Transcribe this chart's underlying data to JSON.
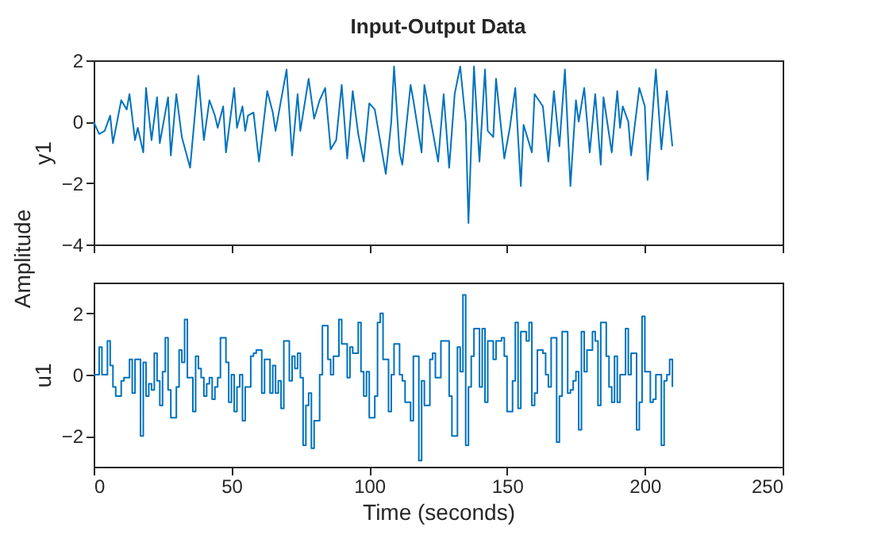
{
  "chart_data": [
    {
      "type": "line",
      "title": "Input-Output Data",
      "ylabel": "y1",
      "annotations": [
        "Amplitude"
      ],
      "tick_labels": "y",
      "x": [
        0,
        2,
        4,
        6,
        7,
        10,
        12,
        13,
        15,
        16,
        18,
        19,
        21,
        23,
        24,
        27,
        28,
        30,
        32,
        35,
        38,
        40,
        42,
        44,
        45,
        47,
        48,
        51,
        52,
        54,
        55,
        56,
        58,
        60,
        63,
        65,
        66,
        70,
        72,
        74,
        75,
        78,
        80,
        82,
        84,
        86,
        88,
        90,
        92,
        94,
        96,
        98,
        100,
        102,
        106,
        108,
        109,
        111,
        112,
        115,
        116,
        119,
        120,
        125,
        127,
        129,
        131,
        133,
        135,
        136,
        138,
        140,
        142,
        143,
        145,
        146,
        149,
        151,
        153,
        155,
        156,
        159,
        160,
        163,
        165,
        167,
        169,
        171,
        173,
        175,
        176,
        178,
        180,
        182,
        184,
        185,
        188,
        190,
        191,
        192,
        194,
        195,
        198,
        200,
        201,
        204,
        206,
        208,
        210
      ],
      "series": [
        {
          "color": "#0072bd",
          "values": [
            0.0,
            -0.4,
            -0.3,
            0.2,
            -0.7,
            0.7,
            0.4,
            0.9,
            -0.6,
            -0.2,
            -1.0,
            1.1,
            -0.6,
            0.8,
            -0.7,
            0.8,
            -1.1,
            0.9,
            -0.5,
            -1.5,
            1.5,
            -0.6,
            0.7,
            0.2,
            -0.2,
            0.5,
            -1.0,
            1.1,
            -0.2,
            0.5,
            -0.3,
            0.2,
            0.3,
            -1.3,
            1.0,
            0.3,
            -0.3,
            1.7,
            -1.1,
            0.9,
            -0.3,
            1.4,
            0.1,
            0.7,
            1.1,
            -0.9,
            -0.6,
            1.2,
            -1.2,
            1.0,
            -0.4,
            -1.3,
            0.6,
            0.4,
            -1.7,
            0.0,
            1.8,
            -1.0,
            -1.4,
            1.2,
            0.7,
            -1.0,
            1.2,
            -1.3,
            0.9,
            -1.5,
            0.9,
            1.8,
            0.0,
            -3.3,
            1.8,
            -1.3,
            1.7,
            -0.3,
            -0.5,
            1.4,
            -1.2,
            -0.2,
            1.1,
            -2.1,
            -0.1,
            -1.0,
            0.9,
            0.5,
            -1.3,
            1.0,
            -0.8,
            1.7,
            -2.1,
            0.7,
            0.0,
            1.1,
            -1.0,
            0.9,
            -1.4,
            0.8,
            -1.0,
            1.0,
            -0.2,
            0.5,
            0.0,
            -1.1,
            1.1,
            0.5,
            -1.9,
            1.7,
            -0.9,
            1.0,
            -0.8
          ]
        }
      ],
      "xlim": [
        0,
        250
      ],
      "xticks": [
        0,
        50,
        100,
        150,
        200,
        250
      ],
      "ylim": [
        -4,
        2
      ],
      "yticks": [
        -4,
        -2,
        0,
        2
      ]
    },
    {
      "type": "step",
      "xlabel": "Time (seconds)",
      "ylabel": "u1",
      "x": [
        0,
        2,
        3,
        5,
        6,
        7,
        8,
        10,
        11,
        13,
        14,
        15,
        17,
        18,
        19,
        20,
        21,
        22,
        23,
        24,
        25,
        26,
        27,
        28,
        30,
        31,
        32,
        33,
        34,
        36,
        37,
        38,
        39,
        40,
        41,
        42,
        43,
        44,
        45,
        46,
        48,
        49,
        50,
        51,
        52,
        53,
        54,
        55,
        57,
        58,
        59,
        61,
        62,
        64,
        65,
        66,
        67,
        68,
        69,
        71,
        72,
        73,
        74,
        75,
        76,
        77,
        78,
        79,
        80,
        82,
        83,
        85,
        86,
        87,
        89,
        90,
        92,
        93,
        94,
        96,
        97,
        98,
        99,
        100,
        102,
        103,
        104,
        105,
        107,
        108,
        109,
        111,
        112,
        113,
        115,
        116,
        118,
        119,
        120,
        122,
        123,
        124,
        126,
        129,
        130,
        132,
        133,
        134,
        135,
        136,
        137,
        138,
        140,
        141,
        142,
        143,
        145,
        146,
        148,
        149,
        150,
        152,
        153,
        154,
        155,
        157,
        158,
        159,
        160,
        161,
        163,
        164,
        165,
        166,
        168,
        169,
        170,
        172,
        173,
        174,
        175,
        176,
        177,
        178,
        179,
        181,
        182,
        183,
        184,
        186,
        187,
        188,
        189,
        190,
        191,
        193,
        194,
        195,
        197,
        198,
        199,
        200,
        202,
        203,
        204,
        206,
        207,
        208,
        209,
        210
      ],
      "series": [
        {
          "color": "#0072bd",
          "values": [
            0.0,
            0.9,
            0.0,
            1.1,
            0.3,
            -0.4,
            -0.7,
            -0.2,
            -0.1,
            0.5,
            -0.6,
            0.5,
            -2.0,
            0.4,
            -0.7,
            -0.3,
            -0.5,
            0.7,
            -0.2,
            -1.0,
            0.1,
            1.2,
            -0.5,
            -1.4,
            -0.4,
            0.8,
            0.4,
            1.8,
            -0.1,
            -1.2,
            0.6,
            0.2,
            -0.1,
            -0.7,
            -0.3,
            -0.1,
            -0.8,
            -0.4,
            -0.1,
            1.2,
            0.4,
            -0.9,
            0.0,
            -1.2,
            -0.4,
            0.0,
            -1.5,
            -0.4,
            0.6,
            0.7,
            0.8,
            -0.6,
            0.5,
            -0.6,
            0.3,
            -0.6,
            -0.2,
            -1.1,
            1.1,
            -0.2,
            0.6,
            0.2,
            0.7,
            -0.1,
            -2.3,
            -1.0,
            -0.6,
            -2.4,
            -1.5,
            0.0,
            1.6,
            0.5,
            0.0,
            0.6,
            1.8,
            1.0,
            -0.1,
            0.9,
            0.7,
            1.7,
            0.1,
            -0.7,
            0.1,
            -1.4,
            -0.7,
            1.7,
            2.0,
            0.5,
            -1.2,
            0.0,
            1.0,
            0.0,
            -0.2,
            -0.9,
            -1.5,
            0.6,
            -2.8,
            -0.2,
            -1.0,
            0.5,
            0.7,
            -0.1,
            1.1,
            -0.7,
            -2.0,
            0.9,
            0.1,
            2.6,
            -2.3,
            -0.4,
            0.6,
            1.5,
            -0.4,
            1.5,
            -0.9,
            1.1,
            0.5,
            1.1,
            1.2,
            0.6,
            -1.2,
            -0.2,
            1.7,
            -1.1,
            1.4,
            1.1,
            1.7,
            -1.0,
            -0.6,
            0.8,
            0.7,
            0.0,
            -0.4,
            1.2,
            -2.2,
            -0.7,
            1.4,
            -0.6,
            -0.5,
            -0.2,
            0.1,
            -1.8,
            1.4,
            0.1,
            0.8,
            1.4,
            1.1,
            -1.0,
            1.7,
            0.6,
            -0.4,
            -0.9,
            0.6,
            -0.9,
            0.0,
            1.5,
            0.0,
            0.7,
            -1.8,
            -0.9,
            1.9,
            0.1,
            -0.9,
            -0.8,
            0.0,
            -2.3,
            -0.2,
            0.0,
            0.5,
            -0.4
          ]
        }
      ],
      "xlim": [
        0,
        250
      ],
      "xticks": [
        0,
        50,
        100,
        150,
        200,
        250
      ],
      "ylim": [
        -3,
        3
      ],
      "yticks": [
        -2,
        0,
        2
      ]
    }
  ]
}
